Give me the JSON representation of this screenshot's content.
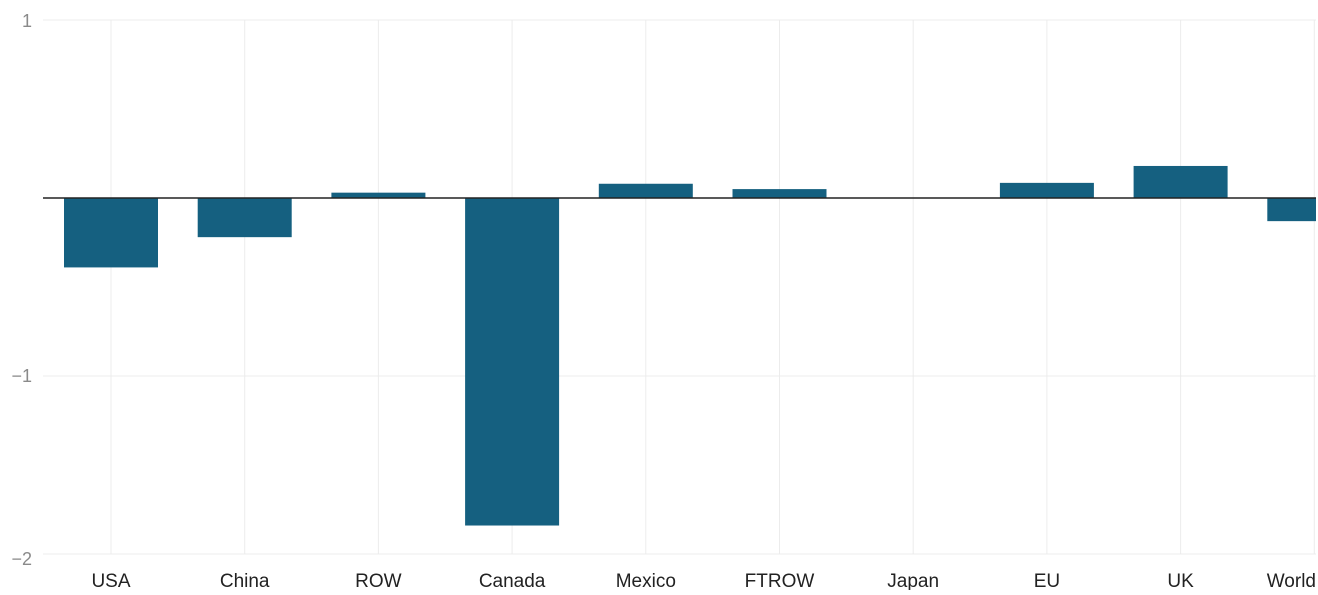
{
  "chart_data": {
    "type": "bar",
    "categories": [
      "USA",
      "China",
      "ROW",
      "Canada",
      "Mexico",
      "FTROW",
      "Japan",
      "EU",
      "UK",
      "World"
    ],
    "values": [
      -0.39,
      -0.22,
      0.03,
      -1.84,
      0.08,
      0.05,
      0.0,
      0.085,
      0.18,
      -0.13
    ],
    "ylim": [
      -2,
      1
    ],
    "yticks": [
      1,
      0,
      -1,
      -2
    ],
    "ytick_labels": [
      "1",
      "",
      "−1",
      "−2"
    ],
    "grid": true,
    "bar_color": "#156080",
    "zero_line_color": "#222222",
    "title": "",
    "xlabel": "",
    "ylabel": ""
  }
}
